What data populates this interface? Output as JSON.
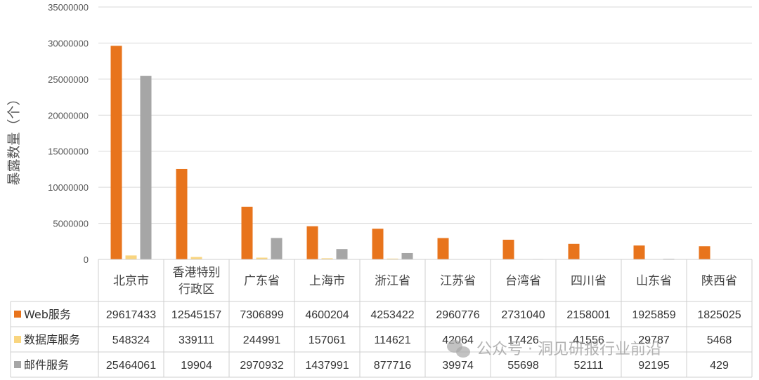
{
  "chart_data": {
    "type": "bar",
    "ylabel": "暴露数量（个）",
    "ylim": [
      0,
      35000000
    ],
    "yticks": [
      "0",
      "5000000",
      "10000000",
      "15000000",
      "20000000",
      "25000000",
      "30000000",
      "35000000"
    ],
    "grid": true,
    "legend": "table-rows",
    "categories": [
      [
        "北京市"
      ],
      [
        "香港特别",
        "行政区"
      ],
      [
        "广东省"
      ],
      [
        "上海市"
      ],
      [
        "浙江省"
      ],
      [
        "江苏省"
      ],
      [
        "台湾省"
      ],
      [
        "四川省"
      ],
      [
        "山东省"
      ],
      [
        "陕西省"
      ]
    ],
    "series": [
      {
        "name": "Web服务",
        "color": "#E8741C",
        "values": [
          29617433,
          12545157,
          7306899,
          4600204,
          4253422,
          2960776,
          2731040,
          2158001,
          1925859,
          1825025
        ],
        "labels": [
          "29617433",
          "12545157",
          "7306899",
          "4600204",
          "4253422",
          "2960776",
          "2731040",
          "2158001",
          "1925859",
          "1825025"
        ]
      },
      {
        "name": "数据库服务",
        "color": "#F9D57F",
        "values": [
          548324,
          339111,
          244991,
          157061,
          114621,
          42064,
          17426,
          41556,
          29787,
          5468
        ],
        "labels": [
          "548324",
          "339111",
          "244991",
          "157061",
          "114621",
          "42064",
          "17426",
          "41556",
          "29787",
          "5468"
        ]
      },
      {
        "name": "邮件服务",
        "color": "#A6A6A6",
        "values": [
          25464061,
          19904,
          2970932,
          1437991,
          877716,
          39974,
          55698,
          52111,
          92195,
          429
        ],
        "labels": [
          "25464061",
          "19904",
          "2970932",
          "1437991",
          "877716",
          "39974",
          "55698",
          "52111",
          "92195",
          "429"
        ]
      }
    ]
  },
  "watermark": "公众号 · 洞见研报行业前沿",
  "watermark_icon": "wechat-icon"
}
